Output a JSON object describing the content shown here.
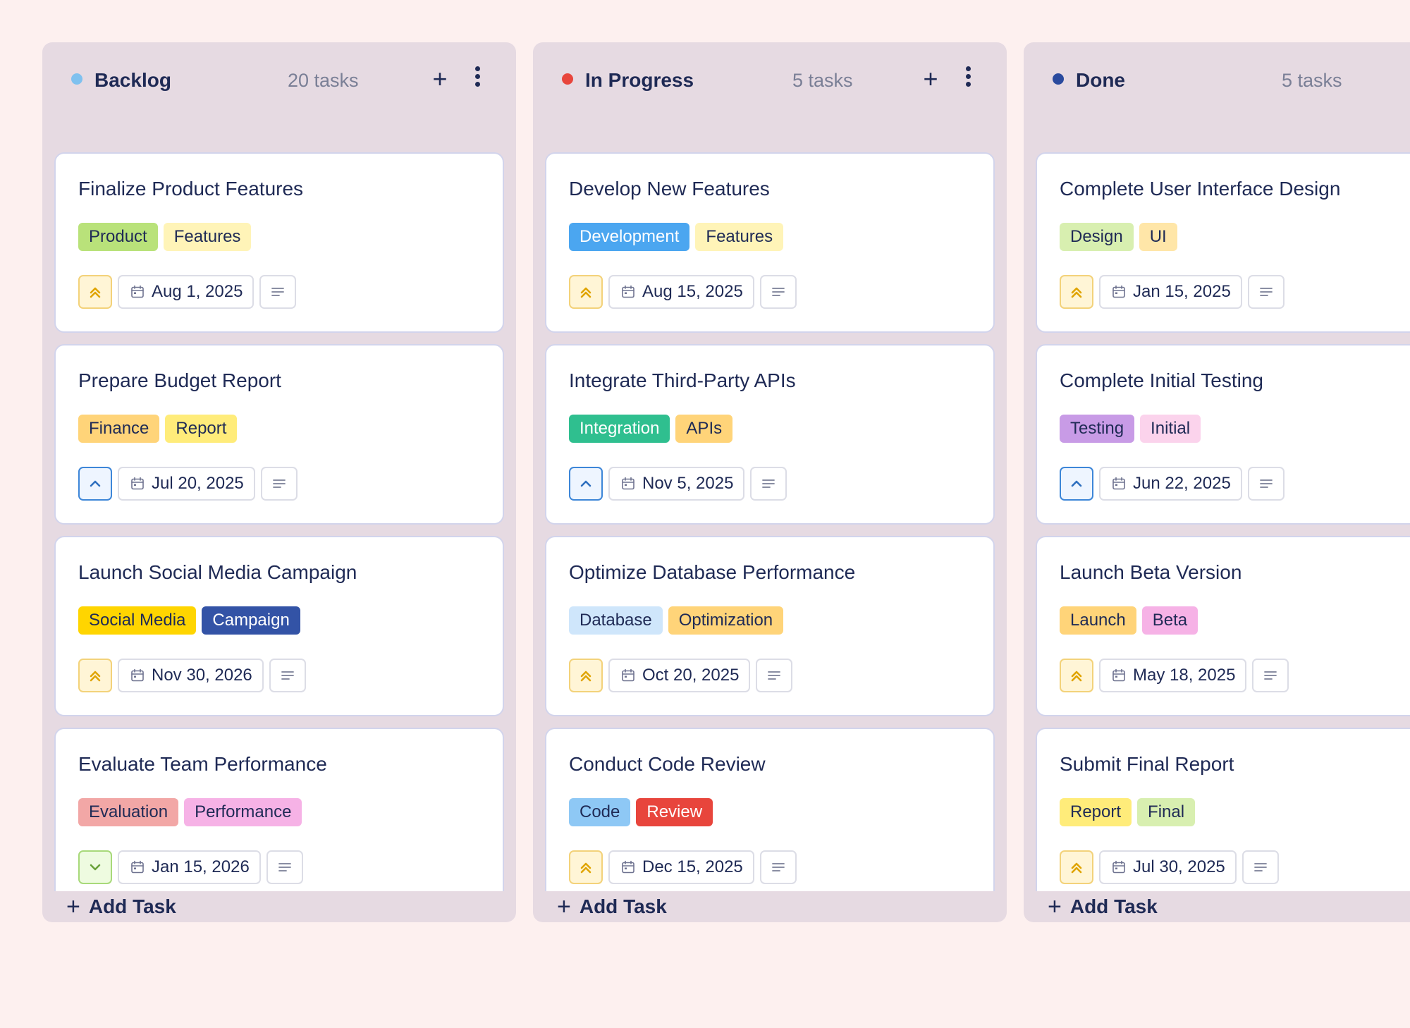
{
  "icons": {
    "urgent": "double-chevron-up-icon",
    "high": "chevron-up-icon",
    "low": "chevron-down-icon",
    "date": "calendar-icon",
    "description": "lines-icon",
    "add": "plus-icon",
    "more": "vertical-dots-icon"
  },
  "colors": {
    "backlog_dot": "#7fc1ef",
    "in_progress_dot": "#e8453c",
    "done_dot": "#2a4a9e"
  },
  "add_task_label": "Add Task",
  "columns": [
    {
      "name": "Backlog",
      "dot_color": "#7fc1ef",
      "count": "20 tasks",
      "cards": [
        {
          "title": "Finalize Product Features",
          "priority": "urgent",
          "date": "Aug 1, 2025",
          "tags": [
            {
              "label": "Product",
              "bg": "#b9e27a",
              "fg": "#1f2a55"
            },
            {
              "label": "Features",
              "bg": "#fff4b8",
              "fg": "#1f2a55"
            }
          ]
        },
        {
          "title": "Prepare Budget Report",
          "priority": "high",
          "date": "Jul 20, 2025",
          "tags": [
            {
              "label": "Finance",
              "bg": "#ffd479",
              "fg": "#1f2a55"
            },
            {
              "label": "Report",
              "bg": "#ffec7a",
              "fg": "#1f2a55"
            }
          ]
        },
        {
          "title": "Launch Social Media Campaign",
          "priority": "urgent",
          "date": "Nov 30, 2026",
          "tags": [
            {
              "label": "Social Media",
              "bg": "#ffd500",
              "fg": "#1f2a55"
            },
            {
              "label": "Campaign",
              "bg": "#3353a6",
              "fg": "#ffffff"
            }
          ]
        },
        {
          "title": "Evaluate Team Performance",
          "priority": "low",
          "date": "Jan 15, 2026",
          "tags": [
            {
              "label": "Evaluation",
              "bg": "#f2a7a6",
              "fg": "#1f2a55"
            },
            {
              "label": "Performance",
              "bg": "#f6b2e6",
              "fg": "#1f2a55"
            }
          ]
        }
      ]
    },
    {
      "name": "In Progress",
      "dot_color": "#e8453c",
      "count": "5 tasks",
      "cards": [
        {
          "title": "Develop New Features",
          "priority": "urgent",
          "date": "Aug 15, 2025",
          "tags": [
            {
              "label": "Development",
              "bg": "#4ba6f0",
              "fg": "#ffffff"
            },
            {
              "label": "Features",
              "bg": "#fff4b8",
              "fg": "#1f2a55"
            }
          ]
        },
        {
          "title": "Integrate Third-Party APIs",
          "priority": "high",
          "date": "Nov 5, 2025",
          "tags": [
            {
              "label": "Integration",
              "bg": "#2fbf8f",
              "fg": "#ffffff"
            },
            {
              "label": "APIs",
              "bg": "#ffd479",
              "fg": "#1f2a55"
            }
          ]
        },
        {
          "title": "Optimize Database Performance",
          "priority": "urgent",
          "date": "Oct 20, 2025",
          "tags": [
            {
              "label": "Database",
              "bg": "#cfe6fb",
              "fg": "#1f2a55"
            },
            {
              "label": "Optimization",
              "bg": "#ffd479",
              "fg": "#1f2a55"
            }
          ]
        },
        {
          "title": "Conduct Code Review",
          "priority": "urgent",
          "date": "Dec 15, 2025",
          "tags": [
            {
              "label": "Code",
              "bg": "#8ec8f5",
              "fg": "#1f2a55"
            },
            {
              "label": "Review",
              "bg": "#e8453c",
              "fg": "#ffffff"
            }
          ]
        }
      ]
    },
    {
      "name": "Done",
      "dot_color": "#2a4a9e",
      "count": "5 tasks",
      "cards": [
        {
          "title": "Complete User Interface Design",
          "priority": "urgent",
          "date": "Jan 15, 2025",
          "tags": [
            {
              "label": "Design",
              "bg": "#d8efb0",
              "fg": "#1f2a55"
            },
            {
              "label": "UI",
              "bg": "#ffe6a8",
              "fg": "#1f2a55"
            }
          ]
        },
        {
          "title": "Complete Initial Testing",
          "priority": "high",
          "date": "Jun 22, 2025",
          "tags": [
            {
              "label": "Testing",
              "bg": "#c89be6",
              "fg": "#1f2a55"
            },
            {
              "label": "Initial",
              "bg": "#fbd3ec",
              "fg": "#1f2a55"
            }
          ]
        },
        {
          "title": "Launch Beta Version",
          "priority": "urgent",
          "date": "May 18, 2025",
          "tags": [
            {
              "label": "Launch",
              "bg": "#ffd479",
              "fg": "#1f2a55"
            },
            {
              "label": "Beta",
              "bg": "#f6b2e6",
              "fg": "#1f2a55"
            }
          ]
        },
        {
          "title": "Submit Final Report",
          "priority": "urgent",
          "date": "Jul 30, 2025",
          "tags": [
            {
              "label": "Report",
              "bg": "#ffec7a",
              "fg": "#1f2a55"
            },
            {
              "label": "Final",
              "bg": "#d8efb0",
              "fg": "#1f2a55"
            }
          ]
        }
      ]
    }
  ]
}
